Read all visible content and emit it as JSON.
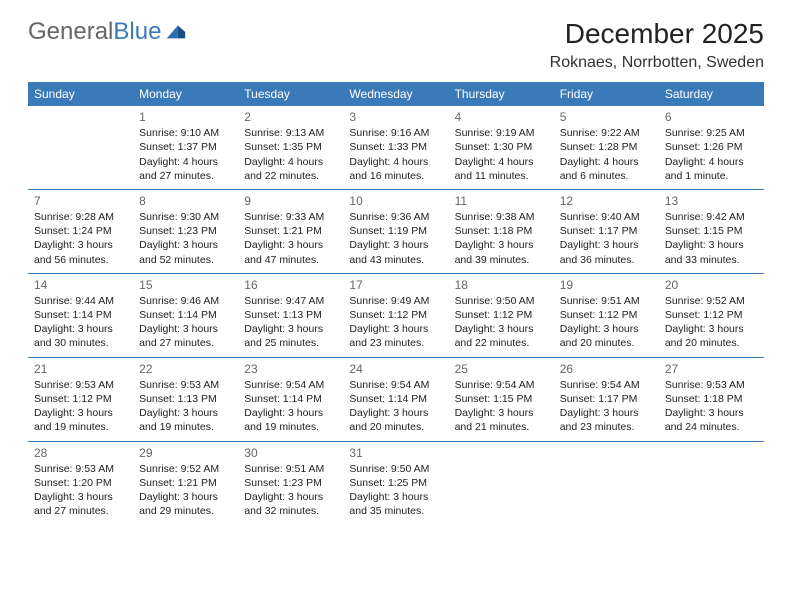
{
  "logo": {
    "general": "General",
    "blue": "Blue"
  },
  "title": "December 2025",
  "location": "Roknaes, Norrbotten, Sweden",
  "colors": {
    "header_bg": "#3b7ab8",
    "header_fg": "#ffffff",
    "row_border": "#3b7ab8",
    "text": "#222222",
    "daynum": "#666666"
  },
  "weekdays": [
    "Sunday",
    "Monday",
    "Tuesday",
    "Wednesday",
    "Thursday",
    "Friday",
    "Saturday"
  ],
  "weeks": [
    [
      null,
      {
        "n": "1",
        "sr": "Sunrise: 9:10 AM",
        "ss": "Sunset: 1:37 PM",
        "dl": "Daylight: 4 hours and 27 minutes."
      },
      {
        "n": "2",
        "sr": "Sunrise: 9:13 AM",
        "ss": "Sunset: 1:35 PM",
        "dl": "Daylight: 4 hours and 22 minutes."
      },
      {
        "n": "3",
        "sr": "Sunrise: 9:16 AM",
        "ss": "Sunset: 1:33 PM",
        "dl": "Daylight: 4 hours and 16 minutes."
      },
      {
        "n": "4",
        "sr": "Sunrise: 9:19 AM",
        "ss": "Sunset: 1:30 PM",
        "dl": "Daylight: 4 hours and 11 minutes."
      },
      {
        "n": "5",
        "sr": "Sunrise: 9:22 AM",
        "ss": "Sunset: 1:28 PM",
        "dl": "Daylight: 4 hours and 6 minutes."
      },
      {
        "n": "6",
        "sr": "Sunrise: 9:25 AM",
        "ss": "Sunset: 1:26 PM",
        "dl": "Daylight: 4 hours and 1 minute."
      }
    ],
    [
      {
        "n": "7",
        "sr": "Sunrise: 9:28 AM",
        "ss": "Sunset: 1:24 PM",
        "dl": "Daylight: 3 hours and 56 minutes."
      },
      {
        "n": "8",
        "sr": "Sunrise: 9:30 AM",
        "ss": "Sunset: 1:23 PM",
        "dl": "Daylight: 3 hours and 52 minutes."
      },
      {
        "n": "9",
        "sr": "Sunrise: 9:33 AM",
        "ss": "Sunset: 1:21 PM",
        "dl": "Daylight: 3 hours and 47 minutes."
      },
      {
        "n": "10",
        "sr": "Sunrise: 9:36 AM",
        "ss": "Sunset: 1:19 PM",
        "dl": "Daylight: 3 hours and 43 minutes."
      },
      {
        "n": "11",
        "sr": "Sunrise: 9:38 AM",
        "ss": "Sunset: 1:18 PM",
        "dl": "Daylight: 3 hours and 39 minutes."
      },
      {
        "n": "12",
        "sr": "Sunrise: 9:40 AM",
        "ss": "Sunset: 1:17 PM",
        "dl": "Daylight: 3 hours and 36 minutes."
      },
      {
        "n": "13",
        "sr": "Sunrise: 9:42 AM",
        "ss": "Sunset: 1:15 PM",
        "dl": "Daylight: 3 hours and 33 minutes."
      }
    ],
    [
      {
        "n": "14",
        "sr": "Sunrise: 9:44 AM",
        "ss": "Sunset: 1:14 PM",
        "dl": "Daylight: 3 hours and 30 minutes."
      },
      {
        "n": "15",
        "sr": "Sunrise: 9:46 AM",
        "ss": "Sunset: 1:14 PM",
        "dl": "Daylight: 3 hours and 27 minutes."
      },
      {
        "n": "16",
        "sr": "Sunrise: 9:47 AM",
        "ss": "Sunset: 1:13 PM",
        "dl": "Daylight: 3 hours and 25 minutes."
      },
      {
        "n": "17",
        "sr": "Sunrise: 9:49 AM",
        "ss": "Sunset: 1:12 PM",
        "dl": "Daylight: 3 hours and 23 minutes."
      },
      {
        "n": "18",
        "sr": "Sunrise: 9:50 AM",
        "ss": "Sunset: 1:12 PM",
        "dl": "Daylight: 3 hours and 22 minutes."
      },
      {
        "n": "19",
        "sr": "Sunrise: 9:51 AM",
        "ss": "Sunset: 1:12 PM",
        "dl": "Daylight: 3 hours and 20 minutes."
      },
      {
        "n": "20",
        "sr": "Sunrise: 9:52 AM",
        "ss": "Sunset: 1:12 PM",
        "dl": "Daylight: 3 hours and 20 minutes."
      }
    ],
    [
      {
        "n": "21",
        "sr": "Sunrise: 9:53 AM",
        "ss": "Sunset: 1:12 PM",
        "dl": "Daylight: 3 hours and 19 minutes."
      },
      {
        "n": "22",
        "sr": "Sunrise: 9:53 AM",
        "ss": "Sunset: 1:13 PM",
        "dl": "Daylight: 3 hours and 19 minutes."
      },
      {
        "n": "23",
        "sr": "Sunrise: 9:54 AM",
        "ss": "Sunset: 1:14 PM",
        "dl": "Daylight: 3 hours and 19 minutes."
      },
      {
        "n": "24",
        "sr": "Sunrise: 9:54 AM",
        "ss": "Sunset: 1:14 PM",
        "dl": "Daylight: 3 hours and 20 minutes."
      },
      {
        "n": "25",
        "sr": "Sunrise: 9:54 AM",
        "ss": "Sunset: 1:15 PM",
        "dl": "Daylight: 3 hours and 21 minutes."
      },
      {
        "n": "26",
        "sr": "Sunrise: 9:54 AM",
        "ss": "Sunset: 1:17 PM",
        "dl": "Daylight: 3 hours and 23 minutes."
      },
      {
        "n": "27",
        "sr": "Sunrise: 9:53 AM",
        "ss": "Sunset: 1:18 PM",
        "dl": "Daylight: 3 hours and 24 minutes."
      }
    ],
    [
      {
        "n": "28",
        "sr": "Sunrise: 9:53 AM",
        "ss": "Sunset: 1:20 PM",
        "dl": "Daylight: 3 hours and 27 minutes."
      },
      {
        "n": "29",
        "sr": "Sunrise: 9:52 AM",
        "ss": "Sunset: 1:21 PM",
        "dl": "Daylight: 3 hours and 29 minutes."
      },
      {
        "n": "30",
        "sr": "Sunrise: 9:51 AM",
        "ss": "Sunset: 1:23 PM",
        "dl": "Daylight: 3 hours and 32 minutes."
      },
      {
        "n": "31",
        "sr": "Sunrise: 9:50 AM",
        "ss": "Sunset: 1:25 PM",
        "dl": "Daylight: 3 hours and 35 minutes."
      },
      null,
      null,
      null
    ]
  ]
}
